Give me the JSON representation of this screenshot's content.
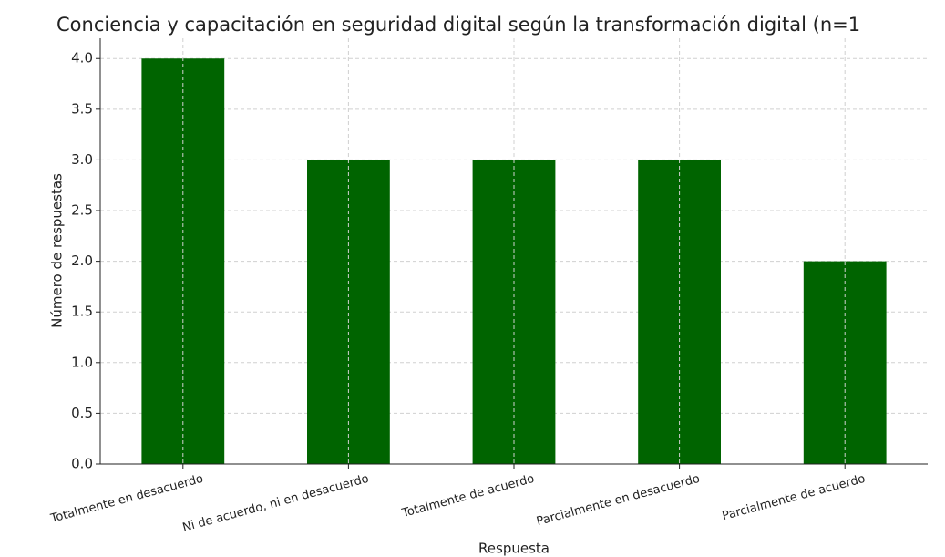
{
  "chart_data": {
    "type": "bar",
    "title": "Conciencia y capacitación en seguridad digital según la transformación digital (n=1",
    "x_label": "Respuesta",
    "y_label": "Número de respuestas",
    "categories": [
      "Totalmente en desacuerdo",
      "Ni de acuerdo, ni en desacuerdo",
      "Totalmente de acuerdo",
      "Parcialmente en desacuerdo",
      "Parcialmente de acuerdo"
    ],
    "values": [
      4,
      3,
      3,
      3,
      2
    ],
    "color": "#006400",
    "ylim": [
      0,
      4.2
    ],
    "yticks": [
      {
        "value": 0,
        "label": "0.0"
      },
      {
        "value": 0.5,
        "label": "0.5"
      },
      {
        "value": 1,
        "label": "1.0"
      },
      {
        "value": 1.5,
        "label": "1.5"
      },
      {
        "value": 2,
        "label": "2.0"
      },
      {
        "value": 2.5,
        "label": "2.5"
      },
      {
        "value": 3,
        "label": "3.0"
      },
      {
        "value": 3.5,
        "label": "3.5"
      },
      {
        "value": 4,
        "label": "4.0"
      }
    ],
    "grid": true
  }
}
